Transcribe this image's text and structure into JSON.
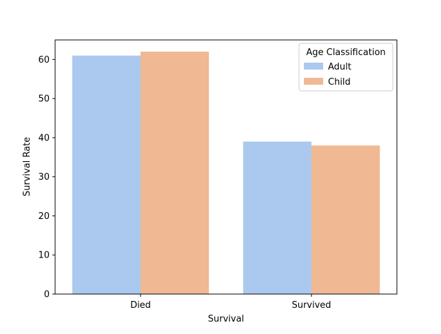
{
  "chart_data": {
    "type": "bar",
    "title": "",
    "xlabel": "Survival",
    "ylabel": "Survival Rate",
    "categories": [
      "Died",
      "Survived"
    ],
    "series": [
      {
        "name": "Adult",
        "values": [
          61,
          39
        ],
        "color": "#abc9ee"
      },
      {
        "name": "Child",
        "values": [
          62,
          38
        ],
        "color": "#f0b893"
      }
    ],
    "ylim": [
      0,
      65
    ],
    "yticks": [
      0,
      10,
      20,
      30,
      40,
      50,
      60
    ],
    "grid": false,
    "legend": {
      "title": "Age Classification",
      "placement": "top-right"
    }
  }
}
